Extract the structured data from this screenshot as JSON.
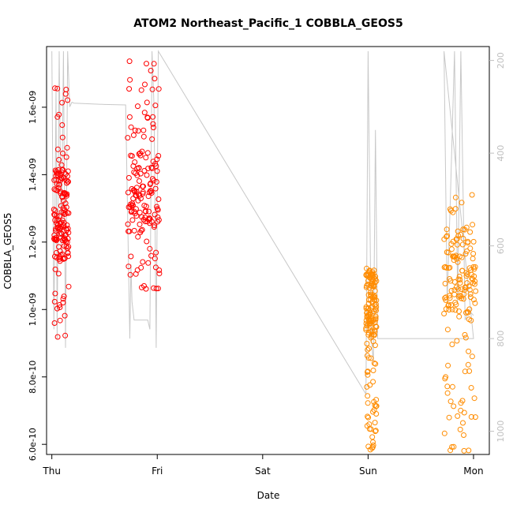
{
  "chart_data": {
    "type": "scatter",
    "title": "ATOM2 Northeast_Pacific_1 COBBLA_GEOS5",
    "xlabel": "Date",
    "ylabel": "COBBLA_GEOS5",
    "x_ticks": [
      "Thu",
      "Fri",
      "Sat",
      "Sun",
      "Mon"
    ],
    "x_range_days": [
      -0.05,
      4.15
    ],
    "y_ticks": [
      6e-10,
      8e-10,
      1e-09,
      1.2e-09,
      1.4e-09,
      1.6e-09
    ],
    "y_tick_labels": [
      "6.0e-10",
      "8.0e-10",
      "1.0e-09",
      "1.2e-09",
      "1.4e-09",
      "1.6e-09"
    ],
    "ylim": [
      5.7e-10,
      1.78e-09
    ],
    "y2_ticks": [
      200,
      400,
      600,
      800,
      1000
    ],
    "y2_tick_labels": [
      "200",
      "400",
      "600",
      "800",
      "1000"
    ],
    "y2lim": [
      1050,
      170
    ],
    "y2_reversed": true,
    "colors": {
      "series_a": "#ff0000",
      "series_b": "#ff8c00",
      "pressure_line": "#c8c8c8",
      "axis": "#000000",
      "right_axis": "#bfbfbf"
    },
    "series": [
      {
        "marker": "open-circle",
        "color": "#ff0000",
        "axis": "left",
        "segments": [
          {
            "x_start": 0.02,
            "x_end": 0.16,
            "y_min": 9e-10,
            "y_max": 1.68e-09,
            "center": 1.28e-09
          },
          {
            "x_start": 0.72,
            "x_end": 1.02,
            "y_min": 1.06e-09,
            "y_max": 1.74e-09,
            "center": 1.35e-09
          }
        ]
      },
      {
        "marker": "open-circle",
        "color": "#ff8c00",
        "axis": "left",
        "segments": [
          {
            "x_start": 2.98,
            "x_end": 3.08,
            "y_min": 5.8e-10,
            "y_max": 1.14e-09,
            "center": 1.02e-09
          },
          {
            "x_start": 3.72,
            "x_end": 4.02,
            "y_min": 5.8e-10,
            "y_max": 1.35e-09,
            "center": 1.12e-09
          }
        ]
      },
      {
        "marker": "line",
        "color": "#c8c8c8",
        "axis": "right",
        "points": [
          [
            0.0,
            180
          ],
          [
            0.02,
            780
          ],
          [
            0.04,
            260
          ],
          [
            0.05,
            800
          ],
          [
            0.07,
            180
          ],
          [
            0.09,
            620
          ],
          [
            0.11,
            180
          ],
          [
            0.13,
            820
          ],
          [
            0.15,
            180
          ],
          [
            0.17,
            300
          ],
          [
            0.19,
            290
          ],
          [
            0.21,
            292
          ],
          [
            0.3,
            293
          ],
          [
            0.5,
            295
          ],
          [
            0.7,
            296
          ],
          [
            0.74,
            800
          ],
          [
            0.75,
            640
          ],
          [
            0.76,
            720
          ],
          [
            0.78,
            760
          ],
          [
            0.8,
            760
          ],
          [
            0.83,
            760
          ],
          [
            0.88,
            760
          ],
          [
            0.91,
            760
          ],
          [
            0.93,
            780
          ],
          [
            0.95,
            180
          ],
          [
            0.97,
            300
          ],
          [
            0.99,
            820
          ],
          [
            1.01,
            180
          ],
          [
            2.98,
            920
          ],
          [
            3.0,
            180
          ],
          [
            3.03,
            800
          ],
          [
            3.05,
            850
          ],
          [
            3.07,
            350
          ],
          [
            3.09,
            800
          ],
          [
            3.15,
            800
          ],
          [
            3.5,
            800
          ],
          [
            3.8,
            800
          ],
          [
            4.0,
            800
          ],
          [
            3.72,
            180
          ],
          [
            3.75,
            720
          ],
          [
            3.78,
            500
          ],
          [
            3.82,
            180
          ],
          [
            3.85,
            720
          ],
          [
            3.88,
            180
          ],
          [
            3.92,
            760
          ],
          [
            3.96,
            740
          ],
          [
            4.0,
            750
          ]
        ]
      }
    ]
  }
}
